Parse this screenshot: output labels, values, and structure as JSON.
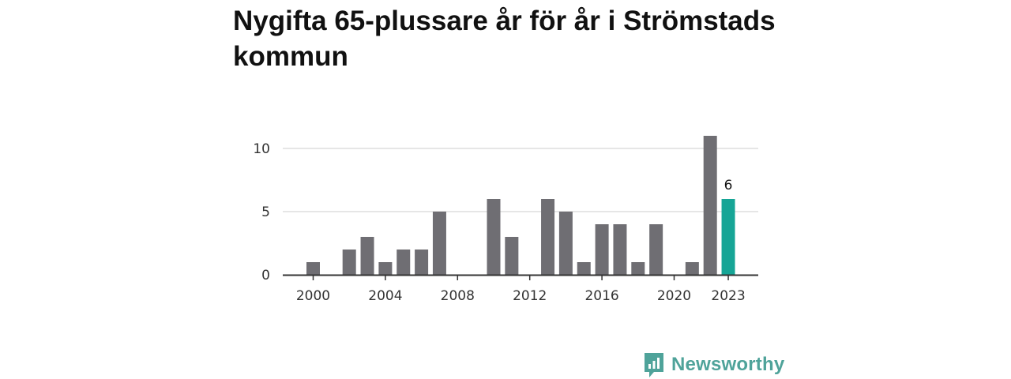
{
  "title": "Nygifta 65-plussare år för år i Strömstads kommun",
  "brand": {
    "name": "Newsworthy",
    "icon": "newsworthy-logo-icon",
    "color": "#4fa39a"
  },
  "colors": {
    "bar": "#6f6e73",
    "highlight": "#16a596",
    "grid": "#dddddd",
    "axis": "#333333"
  },
  "chart_data": {
    "type": "bar",
    "x": [
      1999,
      2000,
      2001,
      2002,
      2003,
      2004,
      2005,
      2006,
      2007,
      2008,
      2009,
      2010,
      2011,
      2012,
      2013,
      2014,
      2015,
      2016,
      2017,
      2018,
      2019,
      2020,
      2021,
      2022,
      2023
    ],
    "values": [
      null,
      1,
      null,
      2,
      3,
      1,
      2,
      2,
      5,
      null,
      null,
      6,
      3,
      null,
      6,
      5,
      1,
      4,
      4,
      1,
      4,
      null,
      1,
      11,
      6
    ],
    "highlight_x": 2023,
    "highlight_label": "6",
    "y_ticks": [
      0,
      5,
      10
    ],
    "y_tick_labels": [
      "0",
      "5",
      "10"
    ],
    "x_ticks": [
      2000,
      2004,
      2008,
      2012,
      2016,
      2020,
      2023
    ],
    "x_tick_labels": [
      "2000",
      "2004",
      "2008",
      "2012",
      "2016",
      "2020",
      "2023"
    ],
    "ylim": [
      0,
      11
    ],
    "xlabel": "",
    "ylabel": "",
    "grid": true
  }
}
